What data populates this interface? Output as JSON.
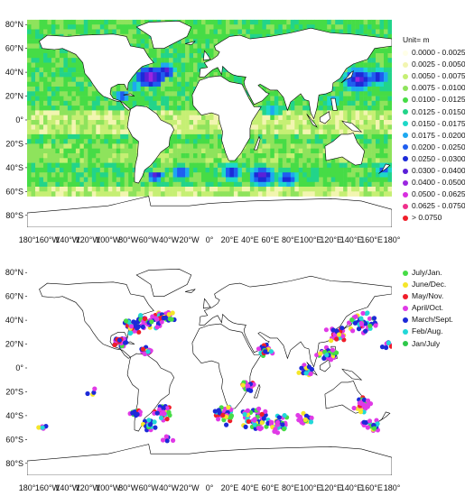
{
  "top_map": {
    "unit_label": "Unit= m",
    "lat_ticks": [
      "80°N",
      "60°N",
      "40°N",
      "20°N",
      "0°",
      "20°S",
      "40°S",
      "60°S",
      "80°S"
    ],
    "lon_ticks": [
      "180°",
      "160°W",
      "140°W",
      "120°W",
      "100°W",
      "80°W",
      "60°W",
      "40°W",
      "20°W",
      "0°",
      "20°E",
      "40°E",
      "60°E",
      "80°E",
      "100°E",
      "120°E",
      "140°E",
      "160°E",
      "180°"
    ],
    "legend": [
      {
        "label": "0.0000 - 0.0025",
        "color": "#ffffe8"
      },
      {
        "label": "0.0025 - 0.0050",
        "color": "#f2f5b0"
      },
      {
        "label": "0.0050 - 0.0075",
        "color": "#c6ef74"
      },
      {
        "label": "0.0075 - 0.0100",
        "color": "#8ee35c"
      },
      {
        "label": "0.0100 - 0.0125",
        "color": "#46dc46"
      },
      {
        "label": "0.0125 - 0.0150",
        "color": "#22d48a"
      },
      {
        "label": "0.0150 - 0.0175",
        "color": "#1ed8c8"
      },
      {
        "label": "0.0175 - 0.0200",
        "color": "#1ea8f0"
      },
      {
        "label": "0.0200 - 0.0250",
        "color": "#1f5ef0"
      },
      {
        "label": "0.0250 - 0.0300",
        "color": "#1c2ad8"
      },
      {
        "label": "0.0300 - 0.0400",
        "color": "#5a20d8"
      },
      {
        "label": "0.0400 - 0.0500",
        "color": "#9a26e0"
      },
      {
        "label": "0.0500 - 0.0625",
        "color": "#d82ee0"
      },
      {
        "label": "0.0625 - 0.0750",
        "color": "#f0308c"
      },
      {
        "label": "> 0.0750",
        "color": "#f01e2a"
      }
    ]
  },
  "bottom_map": {
    "lat_ticks": [
      "80°N",
      "60°N",
      "40°N",
      "20°N",
      "0°",
      "20°S",
      "40°S",
      "60°S",
      "80°S"
    ],
    "lon_ticks": [
      "180°",
      "160°W",
      "140°W",
      "120°W",
      "100°W",
      "80°W",
      "60°W",
      "40°W",
      "20°W",
      "0°",
      "20°E",
      "40°E",
      "60°E",
      "80°E",
      "100°E",
      "120°E",
      "140°E",
      "160°E",
      "180°"
    ],
    "legend": [
      {
        "label": "July/Jan.",
        "color": "#46dc46"
      },
      {
        "label": "June/Dec.",
        "color": "#f5e62a"
      },
      {
        "label": "May/Nov.",
        "color": "#f01e2a"
      },
      {
        "label": "April/Oct.",
        "color": "#e03ae6"
      },
      {
        "label": "March/Sept.",
        "color": "#1c2ad8"
      },
      {
        "label": "Feb/Aug.",
        "color": "#22d8d8"
      },
      {
        "label": "Jan/July",
        "color": "#2ec84a"
      }
    ]
  },
  "colors": {
    "land": "#ffffff",
    "coast": "#000000",
    "ocean_base": "#46dc46"
  }
}
